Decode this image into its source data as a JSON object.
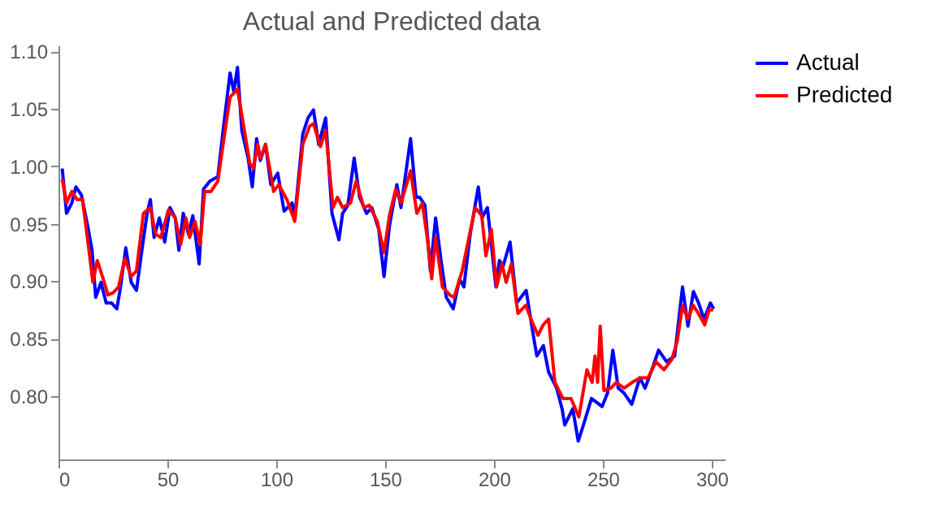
{
  "chart_data": {
    "type": "line",
    "title": "Actual and Predicted data",
    "xlim": [
      0,
      306
    ],
    "xticks": [
      0,
      50,
      100,
      150,
      200,
      250,
      300
    ],
    "ylim": [
      0.745,
      1.105
    ],
    "yticks": [
      {
        "value": 0.8,
        "label": "0.80"
      },
      0.85,
      {
        "value": 0.9,
        "label": "0.90"
      },
      0.95,
      {
        "value": 1.0,
        "label": "1.00"
      },
      1.05,
      {
        "value": 1.1,
        "label": "1.10"
      }
    ],
    "grid": false,
    "legend": "right",
    "marker": "none",
    "line_style": "solid",
    "series": [
      {
        "name": "Actual",
        "color": "#0000ff",
        "x": [
          1.7,
          3.7,
          6.1,
          8.0,
          10.5,
          13.4,
          15.4,
          17.1,
          19.5,
          21.9,
          24.4,
          26.8,
          28.5,
          30.9,
          33.4,
          35.8,
          38.3,
          40.7,
          42.2,
          43.9,
          46.3,
          48.8,
          51.2,
          53.6,
          55.3,
          57.3,
          59.7,
          61.7,
          64.6,
          66.6,
          69.5,
          73.2,
          75.6,
          78.8,
          80.5,
          82.2,
          84.2,
          87.1,
          89.0,
          91.0,
          92.7,
          95.1,
          97.5,
          100.7,
          103.6,
          107.3,
          108.5,
          112.2,
          114.6,
          117.1,
          119.5,
          122.7,
          125.6,
          128.8,
          130.5,
          132.9,
          135.8,
          138.3,
          141.5,
          143.9,
          147.1,
          149.5,
          152.0,
          155.4,
          157.3,
          161.7,
          164.2,
          165.9,
          168.3,
          170.8,
          173.2,
          175.7,
          178.1,
          181.3,
          184.2,
          186.2,
          189.1,
          192.8,
          194.5,
          197.0,
          200.9,
          202.5,
          204.2,
          207.4,
          210.4,
          214.8,
          217.8,
          219.7,
          222.7,
          225.1,
          228.8,
          231.3,
          232.5,
          236.2,
          238.7,
          241.1,
          244.8,
          249.7,
          252.2,
          254.6,
          257.1,
          259.6,
          263.3,
          267.0,
          269.4,
          273.1,
          275.6,
          279.3,
          283.0,
          286.6,
          289.1,
          291.6,
          294.0,
          296.5,
          299.4,
          300.9
        ],
        "values": [
          0.998,
          0.959,
          0.968,
          0.982,
          0.975,
          0.948,
          0.927,
          0.886,
          0.899,
          0.881,
          0.881,
          0.876,
          0.895,
          0.929,
          0.899,
          0.892,
          0.927,
          0.959,
          0.971,
          0.938,
          0.955,
          0.934,
          0.964,
          0.955,
          0.927,
          0.959,
          0.941,
          0.957,
          0.915,
          0.98,
          0.987,
          0.991,
          1.031,
          1.081,
          1.065,
          1.086,
          1.031,
          1.007,
          0.982,
          1.024,
          1.005,
          1.019,
          0.984,
          0.994,
          0.961,
          0.968,
          0.955,
          1.028,
          1.042,
          1.049,
          1.019,
          1.042,
          0.959,
          0.936,
          0.959,
          0.966,
          1.007,
          0.973,
          0.959,
          0.964,
          0.945,
          0.904,
          0.948,
          0.984,
          0.964,
          1.024,
          0.973,
          0.973,
          0.966,
          0.909,
          0.955,
          0.918,
          0.886,
          0.876,
          0.902,
          0.895,
          0.941,
          0.982,
          0.955,
          0.964,
          0.895,
          0.918,
          0.913,
          0.934,
          0.881,
          0.892,
          0.856,
          0.835,
          0.844,
          0.821,
          0.807,
          0.789,
          0.775,
          0.789,
          0.761,
          0.775,
          0.798,
          0.791,
          0.803,
          0.84,
          0.807,
          0.803,
          0.793,
          0.816,
          0.807,
          0.826,
          0.84,
          0.83,
          0.835,
          0.895,
          0.861,
          0.891,
          0.881,
          0.867,
          0.881,
          0.876
        ]
      },
      {
        "name": "Predicted",
        "color": "#ff0000",
        "x": [
          1.7,
          3.7,
          6.1,
          8.5,
          11.0,
          13.4,
          15.8,
          17.8,
          20.2,
          22.7,
          25.1,
          27.6,
          30.5,
          33.4,
          35.8,
          39.0,
          42.2,
          44.6,
          47.0,
          50.5,
          53.6,
          56.1,
          58.5,
          60.2,
          62.7,
          65.1,
          67.1,
          70.0,
          73.2,
          75.6,
          78.8,
          82.2,
          85.4,
          87.8,
          89.5,
          91.5,
          92.7,
          95.1,
          98.8,
          101.2,
          104.9,
          108.5,
          112.2,
          115.4,
          117.1,
          120.3,
          122.7,
          126.1,
          128.1,
          130.5,
          134.1,
          136.7,
          140.3,
          142.7,
          146.4,
          149.5,
          152.0,
          154.9,
          157.3,
          161.7,
          164.6,
          167.1,
          169.5,
          171.4,
          173.2,
          176.3,
          179.7,
          181.7,
          185.4,
          188.5,
          191.4,
          194.4,
          196.3,
          198.8,
          201.2,
          203.7,
          205.6,
          208.0,
          211.0,
          214.6,
          217.0,
          220.2,
          222.6,
          225.1,
          228.0,
          231.7,
          235.4,
          239.0,
          242.7,
          245.1,
          246.4,
          247.6,
          248.8,
          250.5,
          253.7,
          256.2,
          259.8,
          263.5,
          267.1,
          270.8,
          274.4,
          278.1,
          281.7,
          284.2,
          286.6,
          289.0,
          291.5,
          293.9,
          296.8,
          298.8,
          300.7
        ],
        "values": [
          0.989,
          0.968,
          0.978,
          0.971,
          0.971,
          0.936,
          0.899,
          0.918,
          0.904,
          0.888,
          0.89,
          0.895,
          0.92,
          0.904,
          0.909,
          0.959,
          0.964,
          0.941,
          0.938,
          0.962,
          0.955,
          0.932,
          0.955,
          0.938,
          0.952,
          0.932,
          0.978,
          0.978,
          0.987,
          1.019,
          1.06,
          1.067,
          1.031,
          1.003,
          0.998,
          1.019,
          1.007,
          1.019,
          0.978,
          0.984,
          0.971,
          0.952,
          1.019,
          1.035,
          1.037,
          1.017,
          1.031,
          0.964,
          0.973,
          0.964,
          0.968,
          0.987,
          0.964,
          0.966,
          0.952,
          0.925,
          0.957,
          0.98,
          0.968,
          0.996,
          0.959,
          0.968,
          0.936,
          0.902,
          0.938,
          0.895,
          0.888,
          0.886,
          0.909,
          0.938,
          0.964,
          0.957,
          0.922,
          0.945,
          0.895,
          0.915,
          0.899,
          0.915,
          0.872,
          0.879,
          0.867,
          0.853,
          0.862,
          0.867,
          0.812,
          0.798,
          0.798,
          0.782,
          0.823,
          0.812,
          0.835,
          0.812,
          0.861,
          0.805,
          0.807,
          0.812,
          0.807,
          0.812,
          0.816,
          0.816,
          0.83,
          0.823,
          0.832,
          0.848,
          0.879,
          0.867,
          0.879,
          0.872,
          0.862,
          0.875,
          0.875
        ]
      }
    ]
  }
}
